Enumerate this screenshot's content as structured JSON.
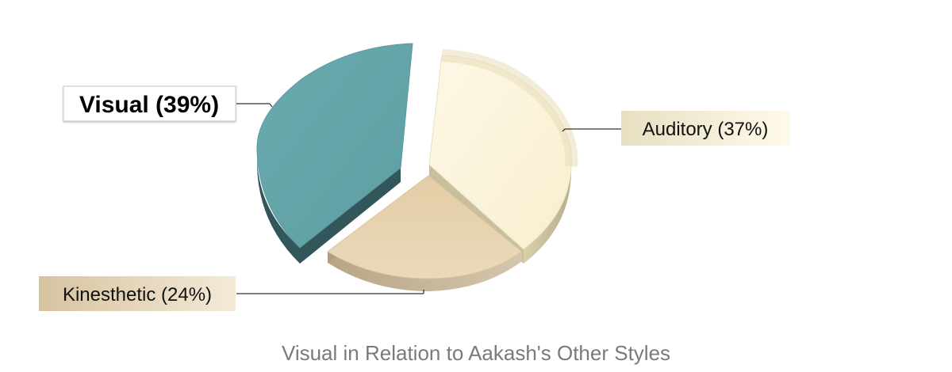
{
  "chart_data": {
    "type": "pie",
    "style": "3d-exploded",
    "title": "Visual in Relation to Aakash's Other Styles",
    "slices": [
      {
        "name": "Visual",
        "value": 39,
        "label": "Visual (39%)",
        "color": "#65a7ac",
        "highlighted": true
      },
      {
        "name": "Auditory",
        "value": 37,
        "label": "Auditory (37%)",
        "color": "#fcf5dc"
      },
      {
        "name": "Kinesthetic",
        "value": 24,
        "label": "Kinesthetic (24%)",
        "color": "#e6d1ae"
      }
    ],
    "legend": "none"
  }
}
